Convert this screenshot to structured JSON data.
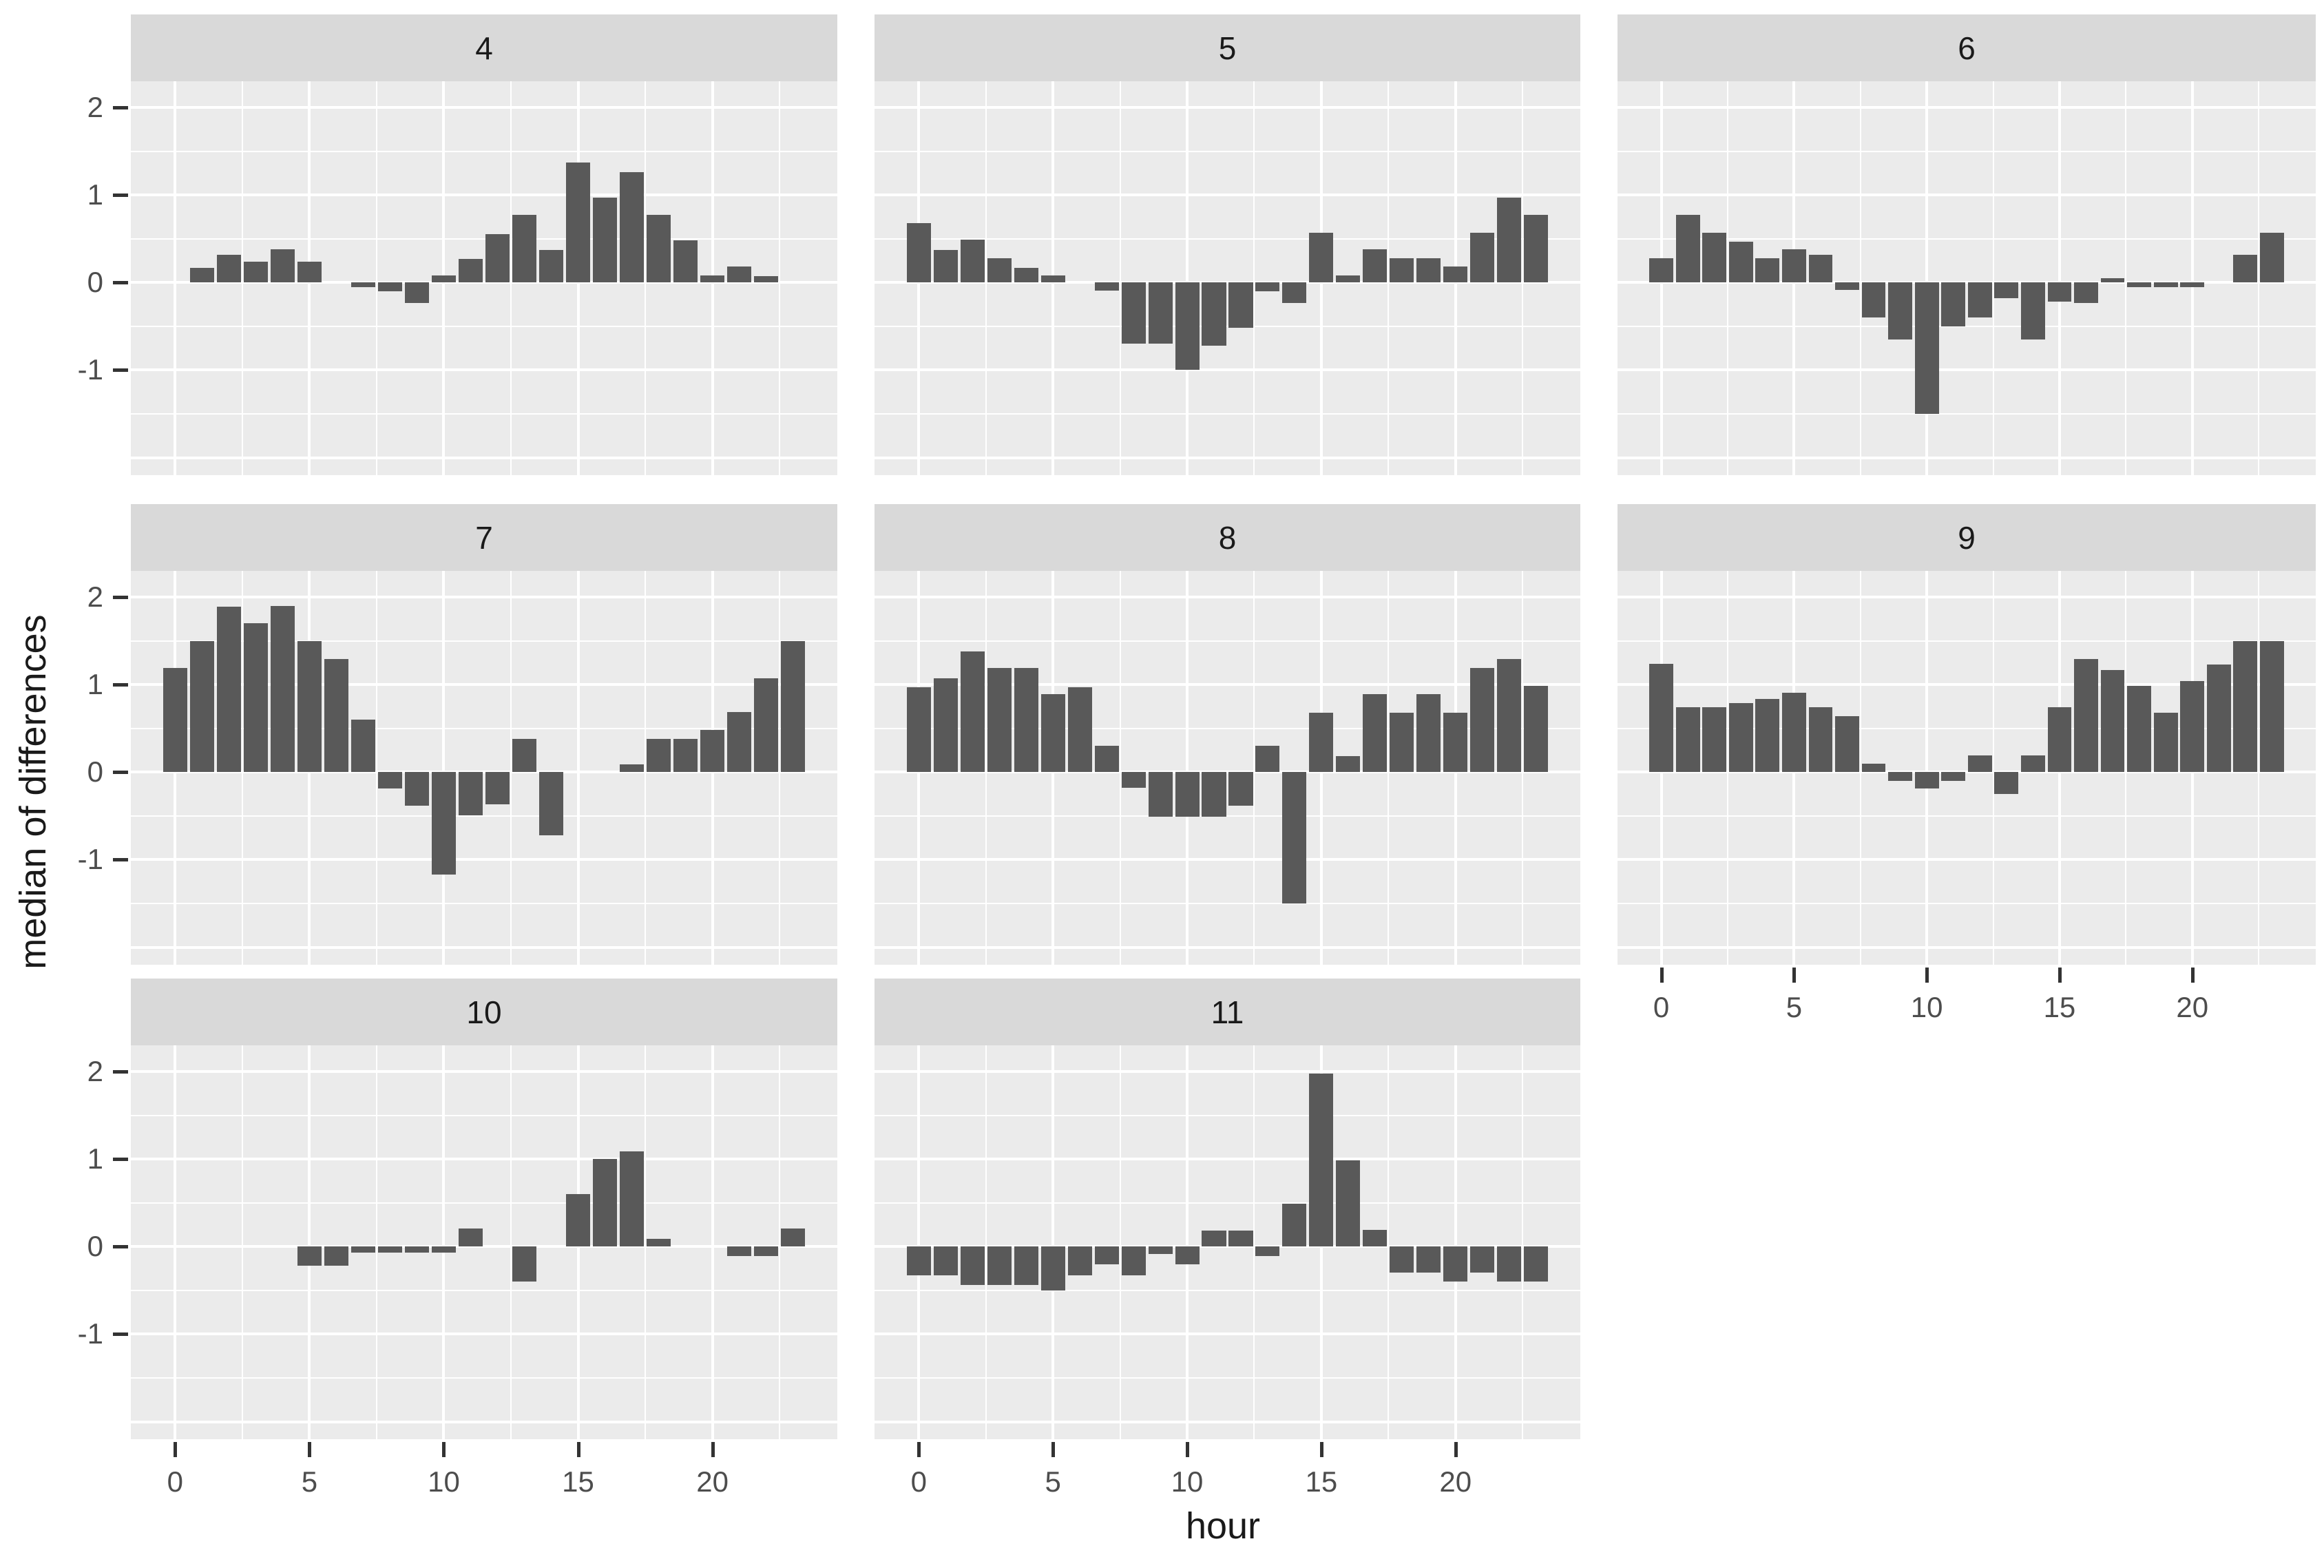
{
  "chart_data": {
    "type": "bar",
    "title": "",
    "xlabel": "hour",
    "ylabel": "median of differences",
    "categories": [
      0,
      1,
      2,
      3,
      4,
      5,
      6,
      7,
      8,
      9,
      10,
      11,
      12,
      13,
      14,
      15,
      16,
      17,
      18,
      19,
      20,
      21,
      22,
      23
    ],
    "facets": [
      {
        "label": "4",
        "values": [
          null,
          0.17,
          0.32,
          0.24,
          0.38,
          0.24,
          null,
          -0.05,
          -0.1,
          -0.23,
          0.08,
          0.27,
          0.55,
          0.77,
          0.37,
          1.37,
          0.97,
          1.26,
          0.77,
          0.48,
          0.08,
          0.18,
          0.07,
          null
        ]
      },
      {
        "label": "5",
        "values": [
          0.68,
          0.37,
          0.49,
          0.28,
          0.17,
          0.08,
          null,
          -0.09,
          -0.7,
          -0.7,
          -1.0,
          -0.72,
          -0.52,
          -0.1,
          -0.23,
          0.57,
          0.08,
          0.38,
          0.28,
          0.28,
          0.18,
          0.57,
          0.97,
          0.77
        ]
      },
      {
        "label": "6",
        "values": [
          0.28,
          0.77,
          0.57,
          0.47,
          0.28,
          0.38,
          0.32,
          -0.08,
          -0.4,
          -0.65,
          -1.5,
          -0.5,
          -0.4,
          -0.18,
          -0.65,
          -0.22,
          -0.23,
          0.05,
          -0.05,
          -0.05,
          -0.05,
          null,
          0.32,
          0.57
        ]
      },
      {
        "label": "7",
        "values": [
          1.19,
          1.5,
          1.89,
          1.7,
          1.9,
          1.5,
          1.29,
          0.6,
          -0.19,
          -0.38,
          -1.17,
          -0.49,
          -0.37,
          0.38,
          -0.72,
          null,
          null,
          0.09,
          0.38,
          0.38,
          0.48,
          0.69,
          1.07,
          1.5
        ]
      },
      {
        "label": "8",
        "values": [
          0.97,
          1.07,
          1.38,
          1.19,
          1.19,
          0.89,
          0.97,
          0.3,
          -0.18,
          -0.51,
          -0.51,
          -0.51,
          -0.38,
          0.3,
          -1.5,
          0.68,
          0.18,
          0.89,
          0.68,
          0.89,
          0.68,
          1.19,
          1.29,
          0.99
        ]
      },
      {
        "label": "9",
        "values": [
          1.24,
          0.74,
          0.74,
          0.79,
          0.84,
          0.91,
          0.74,
          0.64,
          0.1,
          -0.1,
          -0.19,
          -0.1,
          0.19,
          -0.25,
          0.19,
          0.74,
          1.29,
          1.17,
          0.99,
          0.68,
          1.04,
          1.23,
          1.5,
          1.5
        ]
      },
      {
        "label": "10",
        "values": [
          null,
          null,
          null,
          null,
          null,
          -0.22,
          -0.22,
          -0.07,
          -0.07,
          -0.07,
          -0.07,
          0.21,
          null,
          -0.4,
          null,
          0.6,
          1.0,
          1.09,
          0.09,
          null,
          null,
          -0.11,
          -0.11,
          0.21
        ]
      },
      {
        "label": "11",
        "values": [
          -0.33,
          -0.33,
          -0.44,
          -0.44,
          -0.44,
          -0.5,
          -0.33,
          -0.2,
          -0.33,
          -0.08,
          -0.2,
          0.18,
          0.18,
          -0.11,
          0.49,
          1.98,
          0.99,
          0.19,
          -0.3,
          -0.3,
          -0.4,
          -0.3,
          -0.4,
          -0.4
        ]
      }
    ],
    "ylim": [
      -2.2,
      2.3
    ],
    "yticks": [
      2,
      1,
      0,
      -1
    ],
    "xticks": [
      0,
      5,
      10,
      15,
      20
    ],
    "x_minor_gridlines": [
      2.5,
      7.5,
      12.5,
      17.5,
      22.5
    ],
    "y_minor_gridlines": [
      1.5,
      0.5,
      -0.5,
      -1.5
    ],
    "y_major_gridlines": [
      2,
      1,
      0,
      -1,
      -2
    ],
    "grid": "on",
    "legend": "none",
    "bar_color": "#595959",
    "panel_bg": "#ebebeb",
    "strip_bg": "#d9d9d9",
    "axis_text_color": "#4d4d4d",
    "title_text_color": "#1a1a1a"
  }
}
